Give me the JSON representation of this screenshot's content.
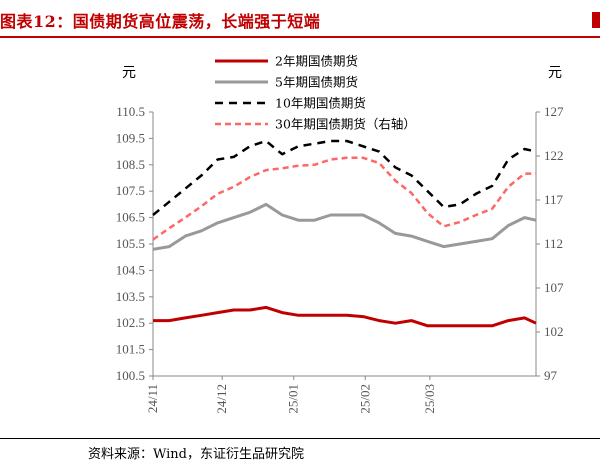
{
  "figure": {
    "title": "图表12：国债期货高位震荡，长端强于短端",
    "source": "资料来源：Wind，东证衍生品研究院",
    "left_unit": "元",
    "right_unit": "元"
  },
  "chart_data": {
    "type": "line",
    "title": "图表12：国债期货高位震荡，长端强于短端",
    "xlabel": "",
    "ylabel": "元",
    "y2label": "元",
    "x_tick_labels": [
      "24/11",
      "24/12",
      "25/01",
      "25/02",
      "25/03"
    ],
    "y_ticks": [
      "100.5",
      "101.5",
      "102.5",
      "103.5",
      "104.5",
      "105.5",
      "106.5",
      "107.5",
      "108.5",
      "109.5",
      "110.5"
    ],
    "y2_ticks": [
      "97",
      "102",
      "107",
      "112",
      "117",
      "122",
      "127"
    ],
    "ylim": [
      100.5,
      110.5
    ],
    "y2lim": [
      97,
      127
    ],
    "grid": false,
    "legend_position": "top",
    "x": [
      "2024-11-01",
      "2024-11-08",
      "2024-11-15",
      "2024-11-22",
      "2024-11-29",
      "2024-12-06",
      "2024-12-13",
      "2024-12-20",
      "2024-12-27",
      "2025-01-03",
      "2025-01-10",
      "2025-01-17",
      "2025-01-24",
      "2025-01-31",
      "2025-02-07",
      "2025-02-14",
      "2025-02-21",
      "2025-02-28",
      "2025-03-07",
      "2025-03-14",
      "2025-03-21",
      "2025-03-28",
      "2025-04-04",
      "2025-04-11",
      "2025-04-16"
    ],
    "series": [
      {
        "name": "2年期国债期货",
        "axis": "left",
        "color": "#c00000",
        "dash": "solid",
        "width": 3,
        "values": [
          102.6,
          102.6,
          102.7,
          102.8,
          102.9,
          103.0,
          103.0,
          103.1,
          102.9,
          102.8,
          102.8,
          102.8,
          102.8,
          102.75,
          102.6,
          102.5,
          102.6,
          102.4,
          102.4,
          102.4,
          102.4,
          102.4,
          102.6,
          102.7,
          102.5
        ]
      },
      {
        "name": "5年期国债期货",
        "axis": "left",
        "color": "#999999",
        "dash": "solid",
        "width": 3,
        "values": [
          105.3,
          105.4,
          105.8,
          106.0,
          106.3,
          106.5,
          106.7,
          107.0,
          106.6,
          106.4,
          106.4,
          106.6,
          106.6,
          106.6,
          106.3,
          105.9,
          105.8,
          105.6,
          105.4,
          105.5,
          105.6,
          105.7,
          106.2,
          106.5,
          106.4
        ]
      },
      {
        "name": "10年期国债期货",
        "axis": "left",
        "color": "#000000",
        "dash": "8,6",
        "width": 2.5,
        "values": [
          106.6,
          107.1,
          107.6,
          108.1,
          108.7,
          108.8,
          109.2,
          109.4,
          108.9,
          109.2,
          109.3,
          109.4,
          109.4,
          109.2,
          109.0,
          108.4,
          108.1,
          107.5,
          106.9,
          107.0,
          107.4,
          107.7,
          108.7,
          109.1,
          109.0
        ]
      },
      {
        "name": "30年期国债期货（右轴）",
        "axis": "right",
        "color": "#ff6666",
        "dash": "6,4",
        "width": 2.5,
        "values": [
          112.5,
          113.8,
          115.0,
          116.3,
          117.7,
          118.5,
          119.6,
          120.4,
          120.6,
          120.9,
          121.0,
          121.6,
          121.8,
          121.8,
          121.2,
          119.2,
          117.8,
          115.5,
          114.0,
          114.5,
          115.3,
          116.0,
          118.5,
          120.0,
          120.0
        ]
      }
    ]
  }
}
